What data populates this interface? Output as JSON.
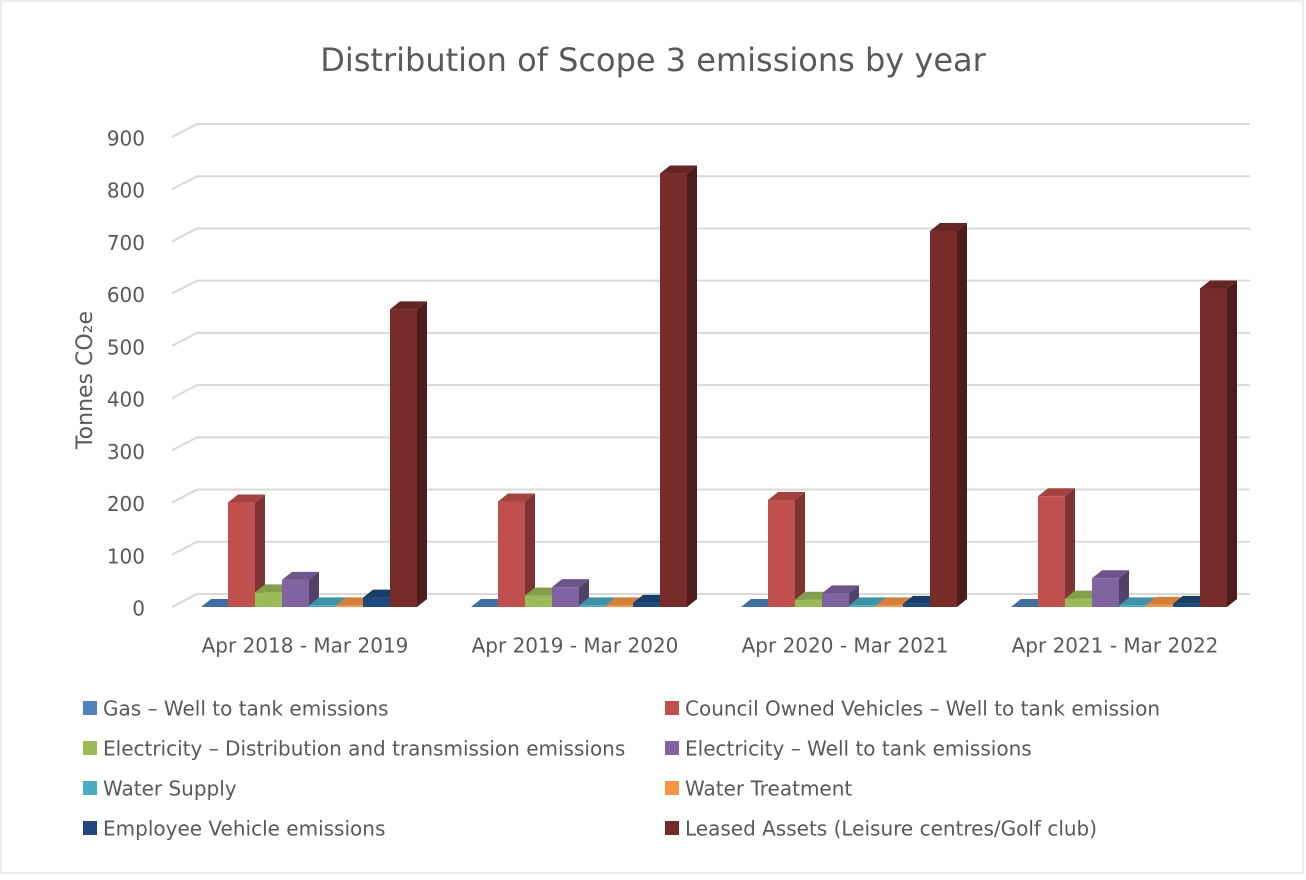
{
  "chart_data": {
    "type": "bar3d",
    "title": "Distribution of Scope 3 emissions by year",
    "y_label": "Tonnes CO₂e",
    "categories": [
      "Apr 2018 - Mar 2019",
      "Apr 2019 - Mar 2020",
      "Apr 2020 - Mar 2021",
      "Apr 2021 - Mar 2022"
    ],
    "series": [
      {
        "name": "Gas – Well to tank emissions",
        "color": "#4f81bd",
        "values": [
          0,
          0,
          0,
          0
        ]
      },
      {
        "name": "Council Owned Vehicles – Well to tank emission",
        "color": "#c0504d",
        "values": [
          200,
          202,
          205,
          212
        ]
      },
      {
        "name": "Electricity – Distribution and transmission emissions",
        "color": "#9bbb59",
        "values": [
          28,
          22,
          14,
          16
        ]
      },
      {
        "name": "Electricity – Well to tank emissions",
        "color": "#8064a2",
        "values": [
          52,
          38,
          26,
          55
        ]
      },
      {
        "name": "Water Supply",
        "color": "#4bacc6",
        "values": [
          3,
          3,
          3,
          3
        ]
      },
      {
        "name": "Water Treatment",
        "color": "#f79646",
        "values": [
          3,
          3,
          3,
          4
        ]
      },
      {
        "name": "Employee Vehicle emissions",
        "color": "#1f497d",
        "values": [
          18,
          8,
          6,
          6
        ]
      },
      {
        "name": "Leased Assets (Leisure centres/Golf club)",
        "color": "#772c2a",
        "values": [
          570,
          830,
          720,
          610
        ]
      }
    ],
    "ylim": [
      0,
      900
    ],
    "yticks": [
      0,
      100,
      200,
      300,
      400,
      500,
      600,
      700,
      800,
      900
    ],
    "grid": true
  }
}
